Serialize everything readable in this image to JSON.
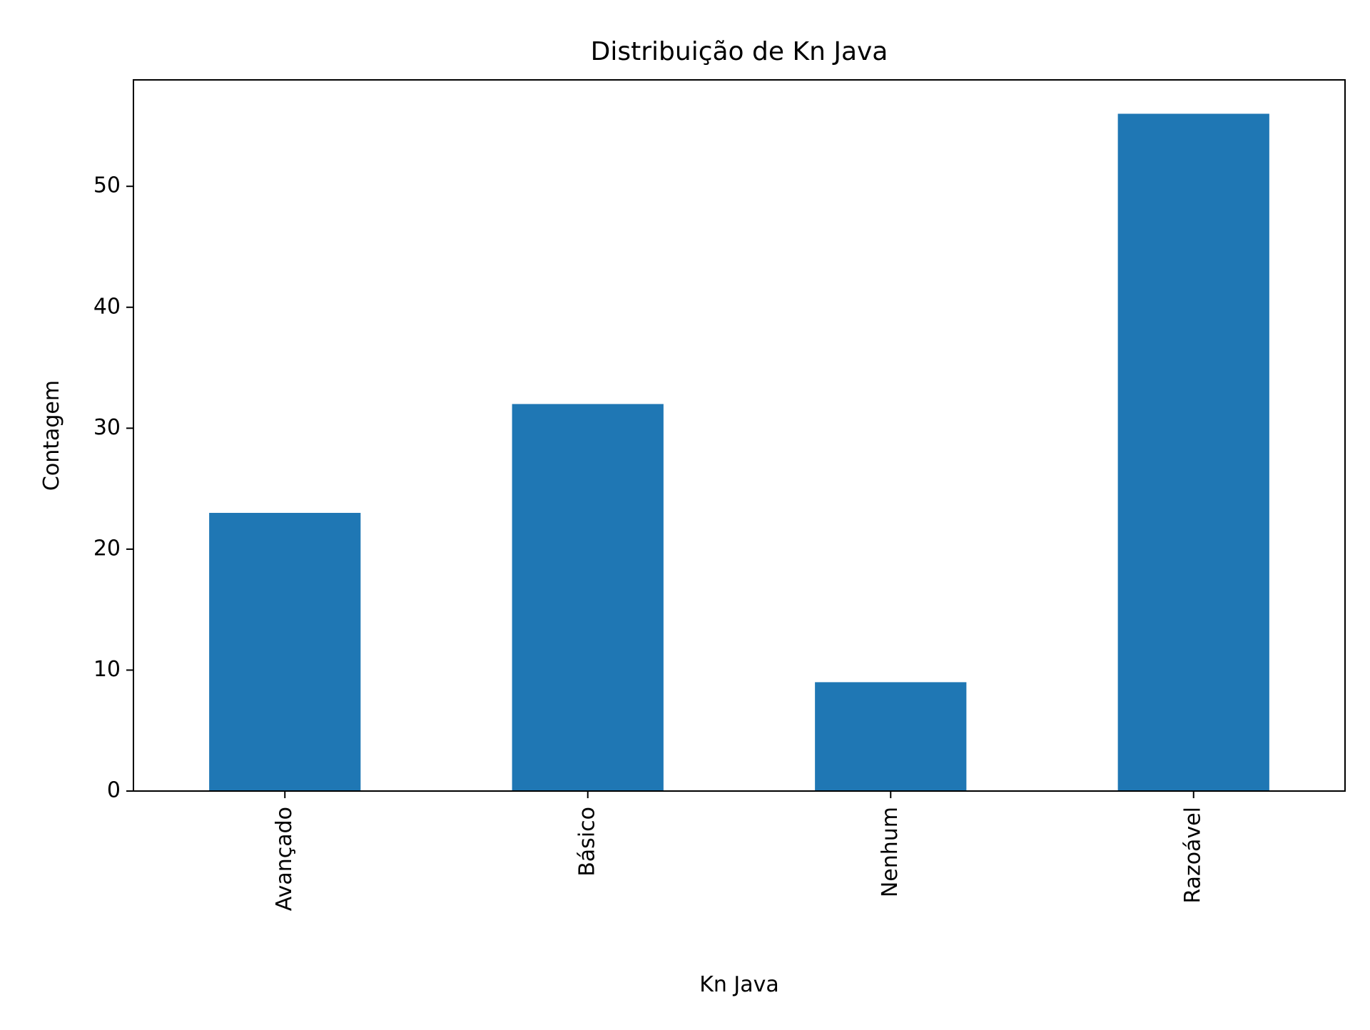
{
  "chart_data": {
    "type": "bar",
    "title": "Distribuição de Kn Java",
    "xlabel": "Kn Java",
    "ylabel": "Contagem",
    "categories": [
      "Avançado",
      "Básico",
      "Nenhum",
      "Razoável"
    ],
    "values": [
      23,
      32,
      9,
      56
    ],
    "ylim": [
      0,
      58.8
    ],
    "yticks": [
      0,
      10,
      20,
      30,
      40,
      50
    ],
    "ytick_labels": [
      "0",
      "10",
      "20",
      "30",
      "40",
      "50"
    ],
    "bar_color": "#1f77b4",
    "grid": false,
    "legend": "none"
  }
}
